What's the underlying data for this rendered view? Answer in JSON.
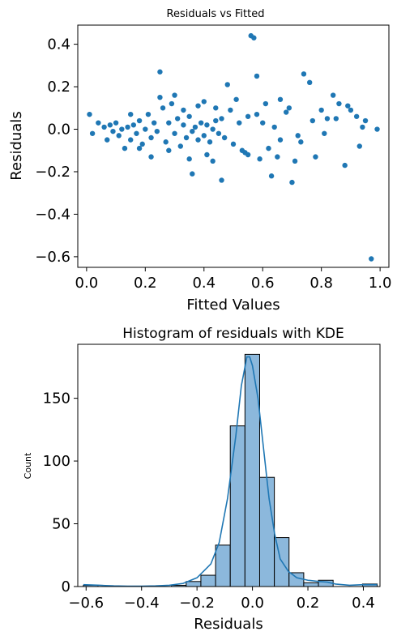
{
  "chart_data": [
    {
      "type": "scatter",
      "title": "Residuals vs Fitted",
      "xlabel": "Fitted Values",
      "ylabel": "Residuals",
      "xlim": [
        -0.03,
        1.03
      ],
      "ylim": [
        -0.65,
        0.49
      ],
      "xticks": [
        0.0,
        0.2,
        0.4,
        0.6,
        0.8,
        1.0
      ],
      "xtick_labels": [
        "0.0",
        "0.2",
        "0.4",
        "0.6",
        "0.8",
        "1.0"
      ],
      "yticks": [
        -0.6,
        -0.4,
        -0.2,
        0.0,
        0.2,
        0.4
      ],
      "ytick_labels": [
        "−0.6",
        "−0.4",
        "−0.2",
        "0.0",
        "0.2",
        "0.4"
      ],
      "grid": false,
      "color": "#1f77b4",
      "points": [
        [
          0.01,
          0.07
        ],
        [
          0.02,
          -0.02
        ],
        [
          0.04,
          0.03
        ],
        [
          0.06,
          0.01
        ],
        [
          0.07,
          -0.05
        ],
        [
          0.08,
          0.02
        ],
        [
          0.09,
          -0.01
        ],
        [
          0.1,
          0.03
        ],
        [
          0.11,
          -0.03
        ],
        [
          0.12,
          0.0
        ],
        [
          0.13,
          -0.09
        ],
        [
          0.14,
          0.01
        ],
        [
          0.15,
          -0.05
        ],
        [
          0.16,
          0.02
        ],
        [
          0.17,
          -0.02
        ],
        [
          0.18,
          0.04
        ],
        [
          0.19,
          -0.07
        ],
        [
          0.2,
          0.0
        ],
        [
          0.21,
          0.07
        ],
        [
          0.22,
          -0.04
        ],
        [
          0.23,
          0.03
        ],
        [
          0.24,
          -0.01
        ],
        [
          0.25,
          0.27
        ],
        [
          0.25,
          0.15
        ],
        [
          0.26,
          0.1
        ],
        [
          0.27,
          -0.06
        ],
        [
          0.28,
          0.03
        ],
        [
          0.29,
          0.12
        ],
        [
          0.3,
          -0.02
        ],
        [
          0.31,
          0.05
        ],
        [
          0.32,
          -0.08
        ],
        [
          0.33,
          0.02
        ],
        [
          0.34,
          -0.04
        ],
        [
          0.35,
          0.06
        ],
        [
          0.36,
          -0.01
        ],
        [
          0.37,
          0.01
        ],
        [
          0.38,
          -0.05
        ],
        [
          0.39,
          0.03
        ],
        [
          0.4,
          -0.03
        ],
        [
          0.41,
          0.02
        ],
        [
          0.42,
          -0.06
        ],
        [
          0.43,
          0.0
        ],
        [
          0.44,
          0.04
        ],
        [
          0.45,
          -0.02
        ],
        [
          0.46,
          0.05
        ],
        [
          0.47,
          -0.04
        ],
        [
          0.48,
          0.21
        ],
        [
          0.5,
          -0.07
        ],
        [
          0.52,
          0.03
        ],
        [
          0.54,
          -0.11
        ],
        [
          0.55,
          0.06
        ],
        [
          0.56,
          0.44
        ],
        [
          0.57,
          0.43
        ],
        [
          0.58,
          0.25
        ],
        [
          0.59,
          -0.14
        ],
        [
          0.6,
          0.03
        ],
        [
          0.62,
          -0.09
        ],
        [
          0.64,
          0.01
        ],
        [
          0.66,
          -0.05
        ],
        [
          0.68,
          0.08
        ],
        [
          0.7,
          -0.25
        ],
        [
          0.72,
          -0.03
        ],
        [
          0.74,
          0.26
        ],
        [
          0.76,
          0.22
        ],
        [
          0.78,
          -0.13
        ],
        [
          0.8,
          0.09
        ],
        [
          0.82,
          0.05
        ],
        [
          0.84,
          0.16
        ],
        [
          0.86,
          0.12
        ],
        [
          0.88,
          -0.17
        ],
        [
          0.9,
          0.09
        ],
        [
          0.92,
          0.06
        ],
        [
          0.93,
          -0.08
        ],
        [
          0.95,
          0.04
        ],
        [
          0.97,
          -0.61
        ],
        [
          0.99,
          0.0
        ],
        [
          0.36,
          -0.21
        ],
        [
          0.46,
          -0.24
        ],
        [
          0.63,
          -0.22
        ],
        [
          0.22,
          -0.13
        ],
        [
          0.28,
          -0.1
        ],
        [
          0.33,
          0.09
        ],
        [
          0.38,
          0.11
        ],
        [
          0.41,
          -0.12
        ],
        [
          0.44,
          0.1
        ],
        [
          0.51,
          0.14
        ],
        [
          0.55,
          -0.12
        ],
        [
          0.61,
          0.12
        ],
        [
          0.66,
          0.14
        ],
        [
          0.71,
          -0.15
        ],
        [
          0.85,
          0.05
        ],
        [
          0.89,
          0.11
        ],
        [
          0.94,
          0.01
        ],
        [
          0.15,
          0.07
        ],
        [
          0.18,
          -0.09
        ],
        [
          0.3,
          0.16
        ],
        [
          0.35,
          -0.14
        ],
        [
          0.4,
          0.13
        ],
        [
          0.43,
          -0.15
        ],
        [
          0.49,
          0.09
        ],
        [
          0.53,
          -0.1
        ],
        [
          0.58,
          0.07
        ],
        [
          0.65,
          -0.13
        ],
        [
          0.69,
          0.1
        ],
        [
          0.73,
          -0.06
        ],
        [
          0.77,
          0.04
        ],
        [
          0.81,
          -0.02
        ]
      ]
    },
    {
      "type": "bar",
      "title": "Histogram of residuals with KDE",
      "xlabel": "Residuals",
      "ylabel": "Count",
      "xlim": [
        -0.63,
        0.46
      ],
      "ylim": [
        0,
        193
      ],
      "xticks": [
        -0.6,
        -0.4,
        -0.2,
        0.0,
        0.2,
        0.4
      ],
      "xtick_labels": [
        "−0.6",
        "−0.4",
        "−0.2",
        "0.0",
        "0.2",
        "0.4"
      ],
      "yticks": [
        0,
        50,
        100,
        150
      ],
      "ytick_labels": [
        "0",
        "50",
        "100",
        "150"
      ],
      "grid": false,
      "bar_color": "#8cb8dc",
      "kde_color": "#1f77b4",
      "bin_edges": [
        -0.61,
        -0.557,
        -0.504,
        -0.451,
        -0.398,
        -0.345,
        -0.292,
        -0.239,
        -0.186,
        -0.133,
        -0.08,
        -0.027,
        0.026,
        0.079,
        0.132,
        0.185,
        0.238,
        0.291,
        0.344,
        0.397,
        0.45
      ],
      "counts": [
        1,
        0,
        0,
        0,
        0,
        0,
        1,
        4,
        9,
        33,
        128,
        185,
        87,
        39,
        11,
        3,
        5,
        0,
        0,
        2
      ],
      "kde": {
        "x": [
          -0.61,
          -0.55,
          -0.5,
          -0.45,
          -0.4,
          -0.35,
          -0.3,
          -0.25,
          -0.2,
          -0.15,
          -0.12,
          -0.09,
          -0.06,
          -0.04,
          -0.02,
          -0.01,
          0.0,
          0.02,
          0.04,
          0.06,
          0.08,
          0.1,
          0.13,
          0.16,
          0.2,
          0.24,
          0.27,
          0.3,
          0.35,
          0.4,
          0.45
        ],
        "y": [
          1.5,
          1.0,
          0.5,
          0.3,
          0.3,
          0.5,
          1.0,
          2.5,
          7,
          18,
          35,
          70,
          120,
          160,
          183,
          183,
          176,
          150,
          110,
          70,
          42,
          22,
          12,
          7,
          5,
          4,
          3.5,
          2,
          1,
          1.5,
          1.5
        ]
      }
    }
  ]
}
